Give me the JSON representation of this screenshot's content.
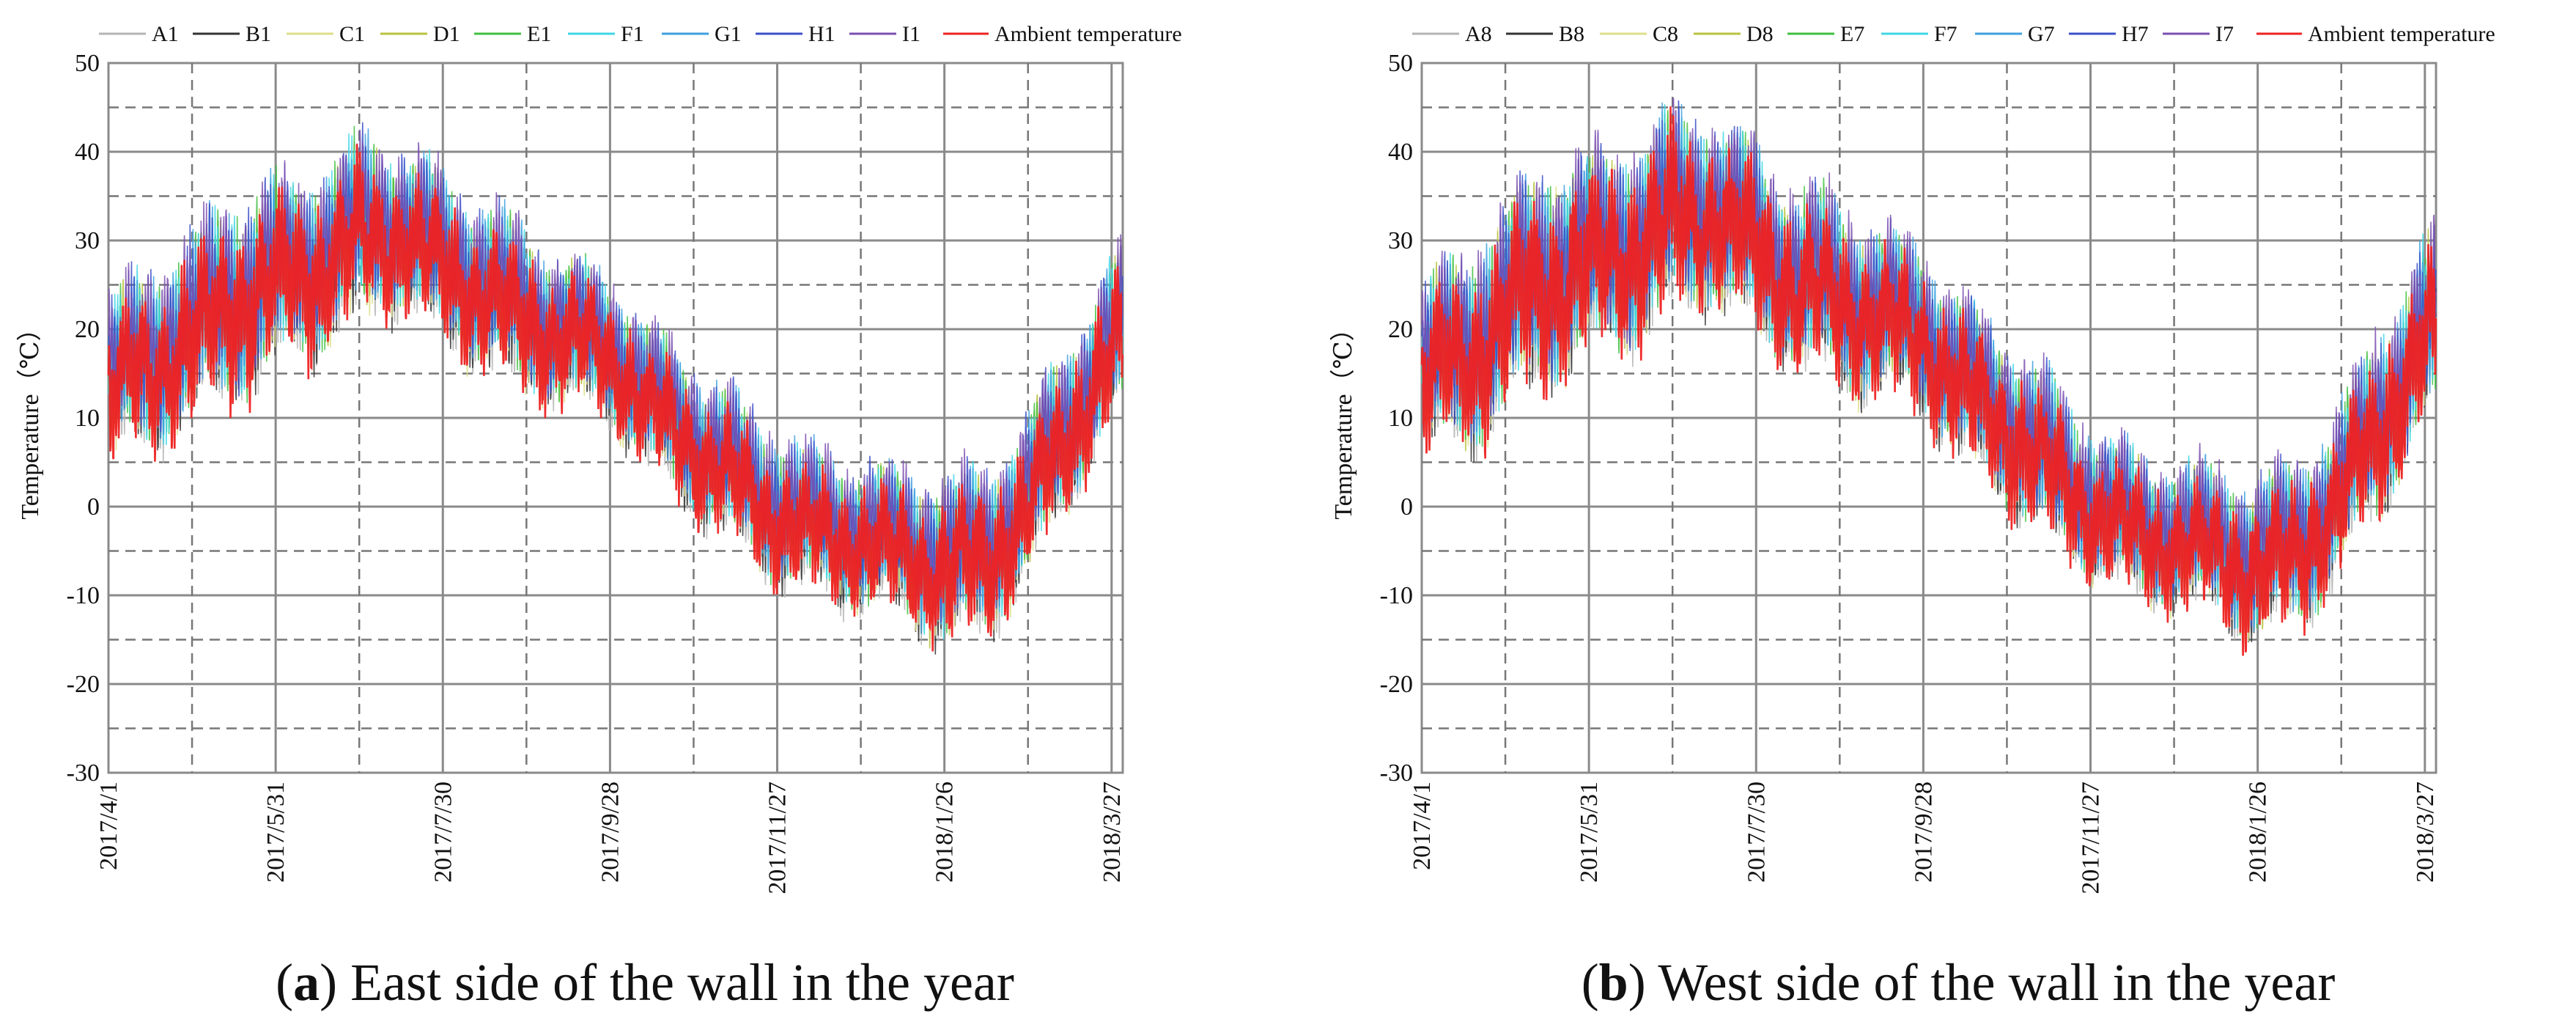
{
  "chart_data": [
    {
      "type": "line",
      "panel_letter": "a",
      "caption": ") East side of the wall in the year",
      "ylabel": "Temperature（℃）",
      "ylim": [
        -30,
        50
      ],
      "yticks": [
        -30,
        -20,
        -10,
        0,
        10,
        20,
        30,
        40,
        50
      ],
      "x_labels": [
        "2017/4/1",
        "2017/5/31",
        "2017/7/30",
        "2017/9/28",
        "2017/11/27",
        "2018/1/26",
        "2018/3/27"
      ],
      "x_days": [
        0,
        60,
        120,
        180,
        240,
        300,
        360
      ],
      "xlim_days": [
        0,
        364
      ],
      "grid": true,
      "legend_position": "top",
      "series": [
        {
          "name": "A1",
          "color": "#b4b4b4"
        },
        {
          "name": "B1",
          "color": "#333333"
        },
        {
          "name": "C1",
          "color": "#dede8a"
        },
        {
          "name": "D1",
          "color": "#b9c23e"
        },
        {
          "name": "E1",
          "color": "#3fbf3f"
        },
        {
          "name": "F1",
          "color": "#3fd7e6"
        },
        {
          "name": "G1",
          "color": "#3f9fdf"
        },
        {
          "name": "H1",
          "color": "#3b4fc8"
        },
        {
          "name": "I1",
          "color": "#7b4fb0"
        },
        {
          "name": "Ambient temperature",
          "color": "#ee2222"
        }
      ],
      "monthly_profile": {
        "day": [
          0,
          15,
          30,
          45,
          60,
          75,
          90,
          105,
          120,
          135,
          150,
          165,
          180,
          195,
          210,
          225,
          240,
          255,
          270,
          285,
          300,
          315,
          330,
          345,
          364
        ],
        "mean": [
          14,
          17,
          20,
          24,
          26,
          28,
          31,
          32,
          28,
          25,
          22,
          20,
          18,
          12,
          8,
          4,
          0,
          -2,
          -3,
          -4,
          -6,
          -5,
          1,
          10,
          20
        ],
        "amplitude": [
          8,
          9,
          9,
          10,
          9,
          9,
          9,
          8,
          8,
          8,
          8,
          7,
          7,
          7,
          7,
          7,
          7,
          7,
          7,
          7,
          8,
          8,
          8,
          8,
          8
        ]
      }
    },
    {
      "type": "line",
      "panel_letter": "b",
      "caption": ") West side of the wall in the year",
      "ylabel": "Temperature（℃）",
      "ylim": [
        -30,
        50
      ],
      "yticks": [
        -30,
        -20,
        -10,
        0,
        10,
        20,
        30,
        40,
        50
      ],
      "x_labels": [
        "2017/4/1",
        "2017/5/31",
        "2017/7/30",
        "2017/9/28",
        "2017/11/27",
        "2018/1/26",
        "2018/3/27"
      ],
      "x_days": [
        0,
        60,
        120,
        180,
        240,
        300,
        360
      ],
      "xlim_days": [
        0,
        364
      ],
      "grid": true,
      "legend_position": "top",
      "series": [
        {
          "name": "A8",
          "color": "#b4b4b4"
        },
        {
          "name": "B8",
          "color": "#333333"
        },
        {
          "name": "C8",
          "color": "#dede8a"
        },
        {
          "name": "D8",
          "color": "#b9c23e"
        },
        {
          "name": "E7",
          "color": "#3fbf3f"
        },
        {
          "name": "F7",
          "color": "#3fd7e6"
        },
        {
          "name": "G7",
          "color": "#3f9fdf"
        },
        {
          "name": "H7",
          "color": "#3b4fc8"
        },
        {
          "name": "I7",
          "color": "#7b4fb0"
        },
        {
          "name": "Ambient temperature",
          "color": "#ee2222"
        }
      ],
      "monthly_profile": {
        "day": [
          0,
          15,
          30,
          45,
          60,
          75,
          90,
          105,
          120,
          135,
          150,
          165,
          180,
          195,
          210,
          225,
          240,
          255,
          270,
          285,
          300,
          315,
          330,
          345,
          364
        ],
        "mean": [
          15,
          18,
          22,
          27,
          28,
          30,
          33,
          34,
          30,
          26,
          24,
          22,
          20,
          14,
          10,
          5,
          1,
          -2,
          -3,
          -4,
          -6,
          -4,
          2,
          11,
          21
        ],
        "amplitude": [
          8,
          10,
          10,
          11,
          10,
          10,
          10,
          9,
          9,
          9,
          9,
          8,
          8,
          8,
          8,
          8,
          7,
          7,
          7,
          7,
          8,
          8,
          8,
          9,
          9
        ]
      }
    }
  ]
}
